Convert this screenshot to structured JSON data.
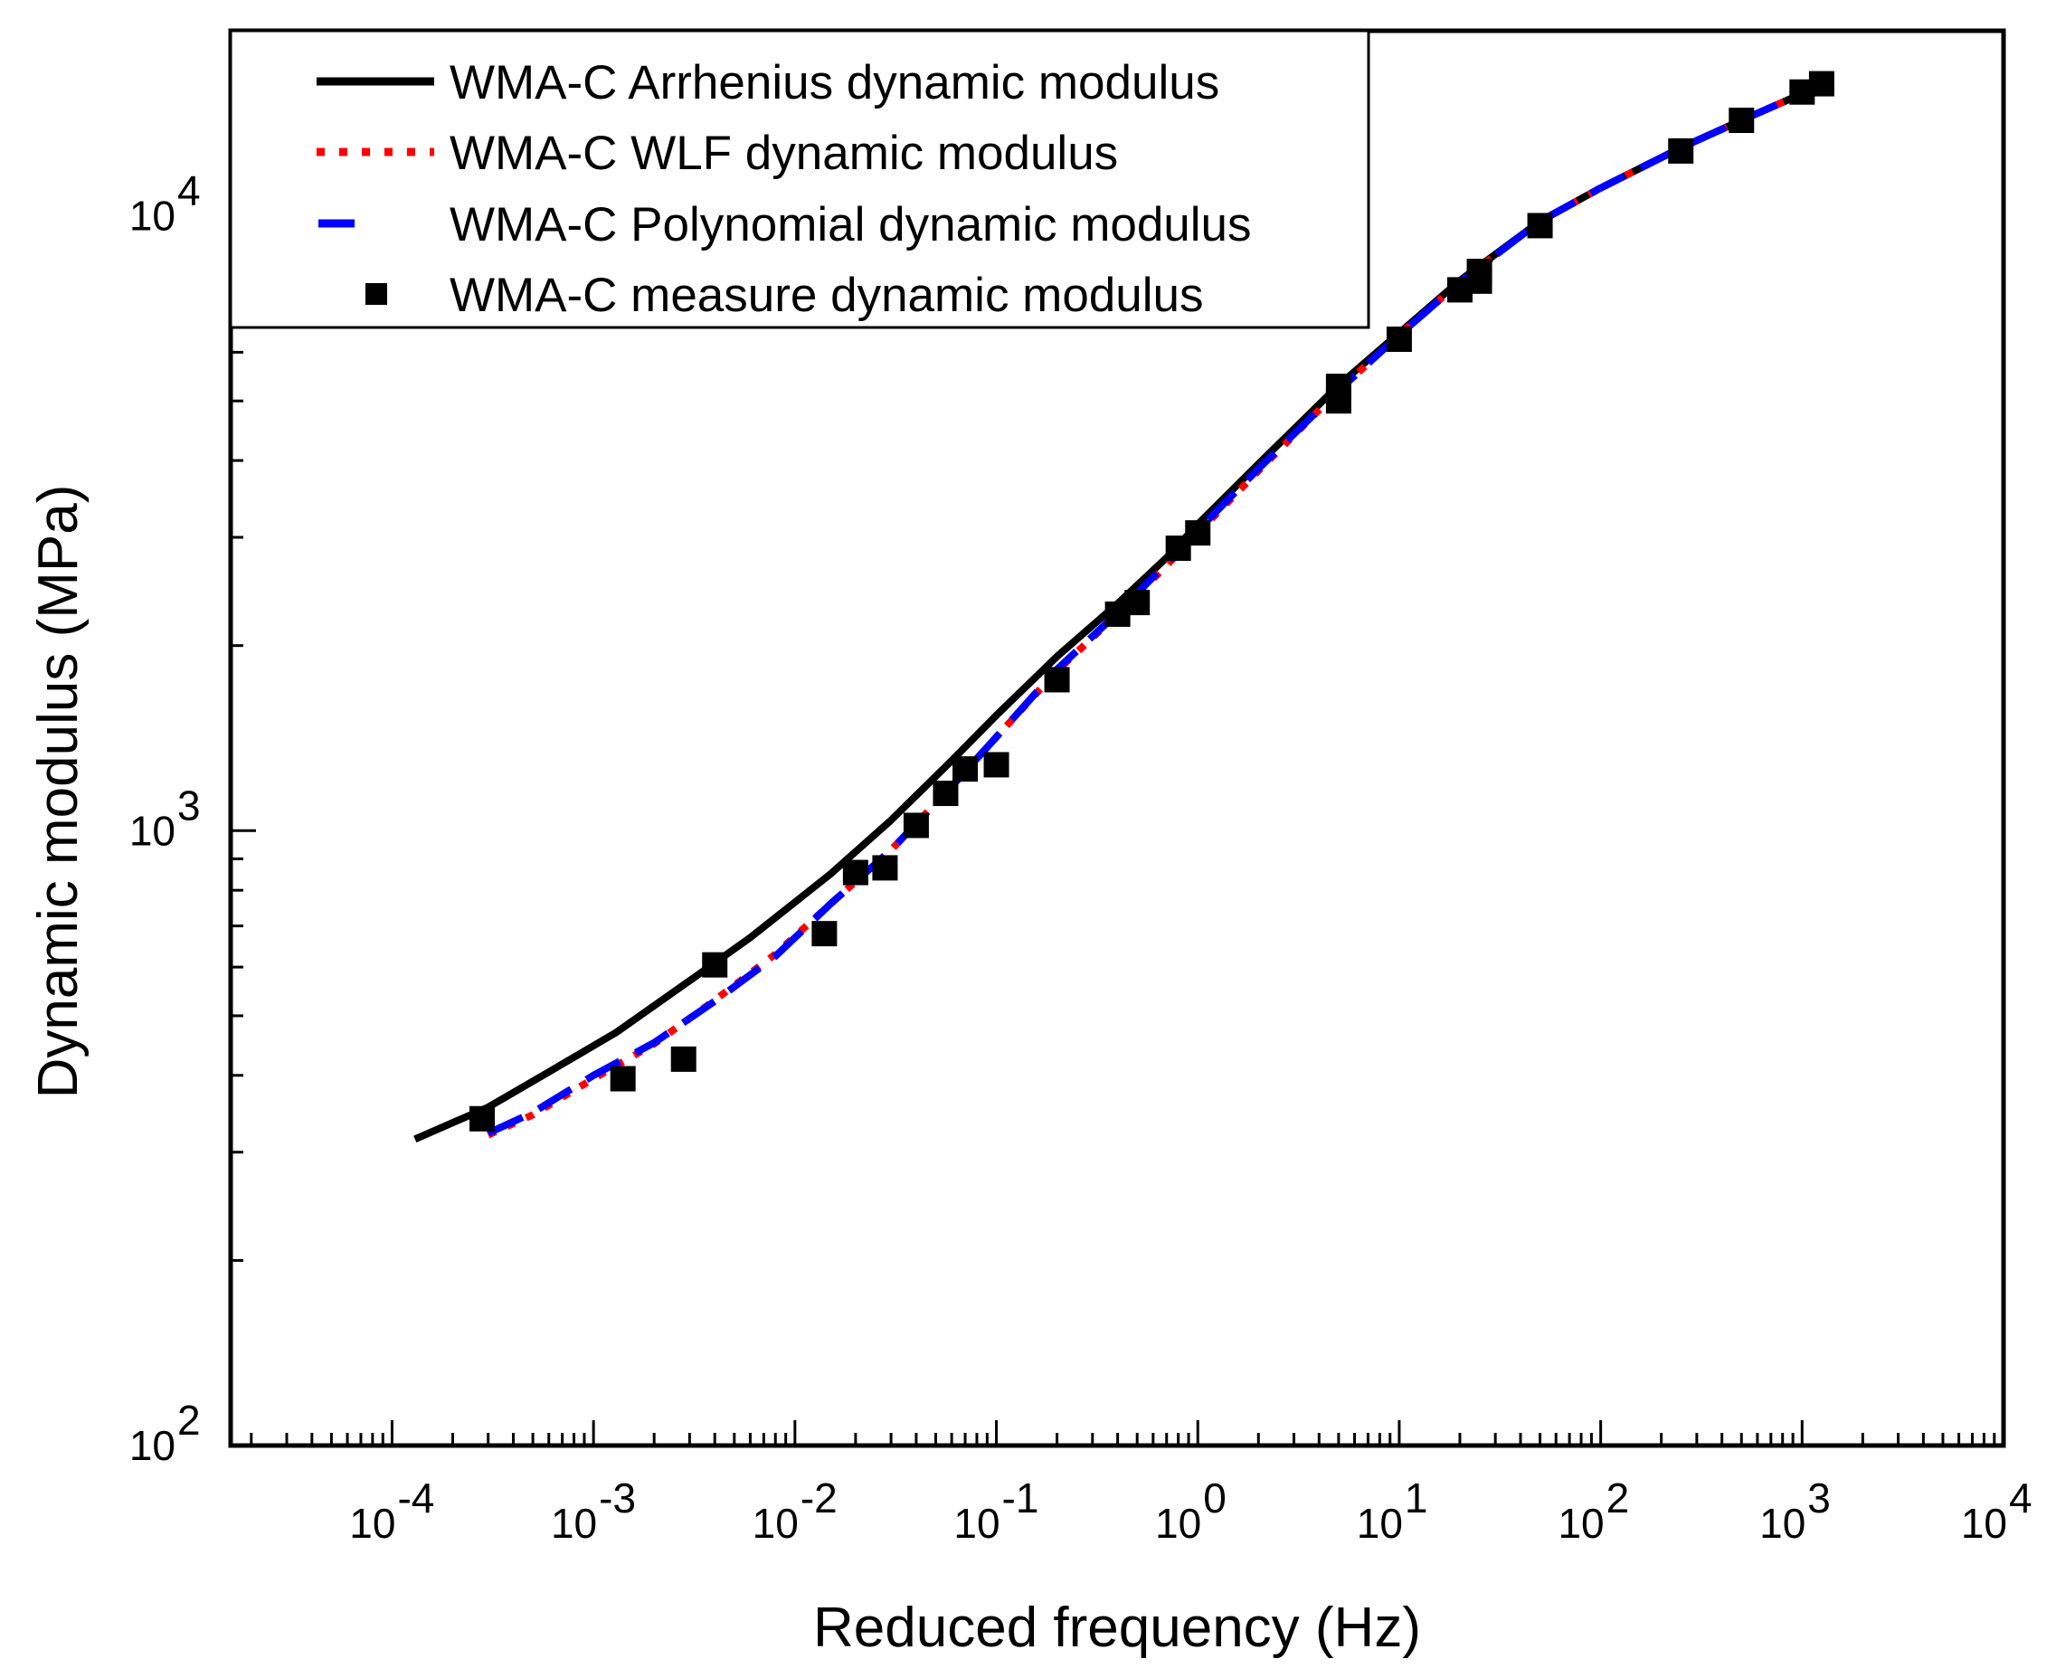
{
  "chart_data": {
    "type": "line",
    "xscale": "log",
    "yscale": "log",
    "xlabel": "Reduced frequency (Hz)",
    "ylabel": "Dynamic modulus (MPa)",
    "xlim": [
      1.58e-05,
      10000
    ],
    "ylim": [
      100,
      20000
    ],
    "x_ticks": [
      {
        "value": 0.0001,
        "base": "10",
        "exp": "-4"
      },
      {
        "value": 0.001,
        "base": "10",
        "exp": "-3"
      },
      {
        "value": 0.01,
        "base": "10",
        "exp": "-2"
      },
      {
        "value": 0.1,
        "base": "10",
        "exp": "-1"
      },
      {
        "value": 1,
        "base": "10",
        "exp": "0"
      },
      {
        "value": 10,
        "base": "10",
        "exp": "1"
      },
      {
        "value": 100,
        "base": "10",
        "exp": "2"
      },
      {
        "value": 1000,
        "base": "10",
        "exp": "3"
      },
      {
        "value": 10000,
        "base": "10",
        "exp": "4"
      }
    ],
    "y_ticks": [
      {
        "value": 100,
        "base": "10",
        "exp": "2"
      },
      {
        "value": 1000,
        "base": "10",
        "exp": "3"
      },
      {
        "value": 10000,
        "base": "10",
        "exp": "4"
      }
    ],
    "legend_position": "top-left",
    "series": [
      {
        "name": "WMA-C Arrhenius dynamic modulus",
        "style": "solid",
        "color": "#000000",
        "x": [
          0.00013,
          0.0003,
          0.0006,
          0.0013,
          0.003,
          0.006,
          0.015,
          0.03,
          0.06,
          0.1,
          0.2,
          0.4,
          0.7,
          1,
          2,
          5,
          10,
          20,
          50,
          100,
          250,
          500,
          1000,
          1200
        ],
        "y": [
          315,
          355,
          405,
          470,
          570,
          670,
          850,
          1040,
          1300,
          1540,
          1920,
          2340,
          2780,
          3150,
          3950,
          5300,
          6450,
          7850,
          9800,
          11100,
          12900,
          14300,
          15800,
          16300
        ]
      },
      {
        "name": "WMA-C WLF dynamic modulus",
        "style": "dotted",
        "color": "#ff0000",
        "x": [
          0.0003,
          0.0005,
          0.001,
          0.002,
          0.004,
          0.008,
          0.015,
          0.03,
          0.06,
          0.1,
          0.2,
          0.4,
          0.7,
          1,
          2,
          5,
          10,
          20,
          50,
          100,
          250,
          500,
          1000,
          1200
        ],
        "y": [
          320,
          345,
          395,
          450,
          530,
          630,
          760,
          930,
          1180,
          1420,
          1820,
          2250,
          2700,
          3050,
          3850,
          5200,
          6400,
          7800,
          9800,
          11100,
          12900,
          14300,
          15800,
          16300
        ]
      },
      {
        "name": "WMA-C Polynomial dynamic modulus",
        "style": "dashed",
        "color": "#0000ff",
        "x": [
          0.0003,
          0.0005,
          0.001,
          0.002,
          0.004,
          0.008,
          0.015,
          0.03,
          0.06,
          0.1,
          0.2,
          0.4,
          0.7,
          1,
          2,
          5,
          10,
          20,
          50,
          100,
          250,
          500,
          1000,
          1200
        ],
        "y": [
          322,
          348,
          400,
          452,
          528,
          625,
          760,
          930,
          1180,
          1420,
          1830,
          2260,
          2720,
          3080,
          3880,
          5200,
          6400,
          7800,
          9800,
          11100,
          12900,
          14300,
          15800,
          16300
        ]
      },
      {
        "name": "WMA-C measure dynamic modulus",
        "style": "markers",
        "color": "#000000",
        "x": [
          0.00028,
          0.0014,
          0.0028,
          0.004,
          0.014,
          0.02,
          0.028,
          0.04,
          0.056,
          0.07,
          0.1,
          0.2,
          0.4,
          0.5,
          0.8,
          1,
          5,
          5,
          10,
          20,
          25,
          25,
          50,
          250,
          500,
          1000,
          1250
        ],
        "y": [
          340,
          395,
          425,
          605,
          680,
          855,
          870,
          1020,
          1150,
          1260,
          1280,
          1760,
          2250,
          2350,
          2880,
          3050,
          5000,
          5280,
          6300,
          7580,
          7830,
          8120,
          9640,
          12750,
          14300,
          15900,
          16400
        ]
      }
    ]
  }
}
